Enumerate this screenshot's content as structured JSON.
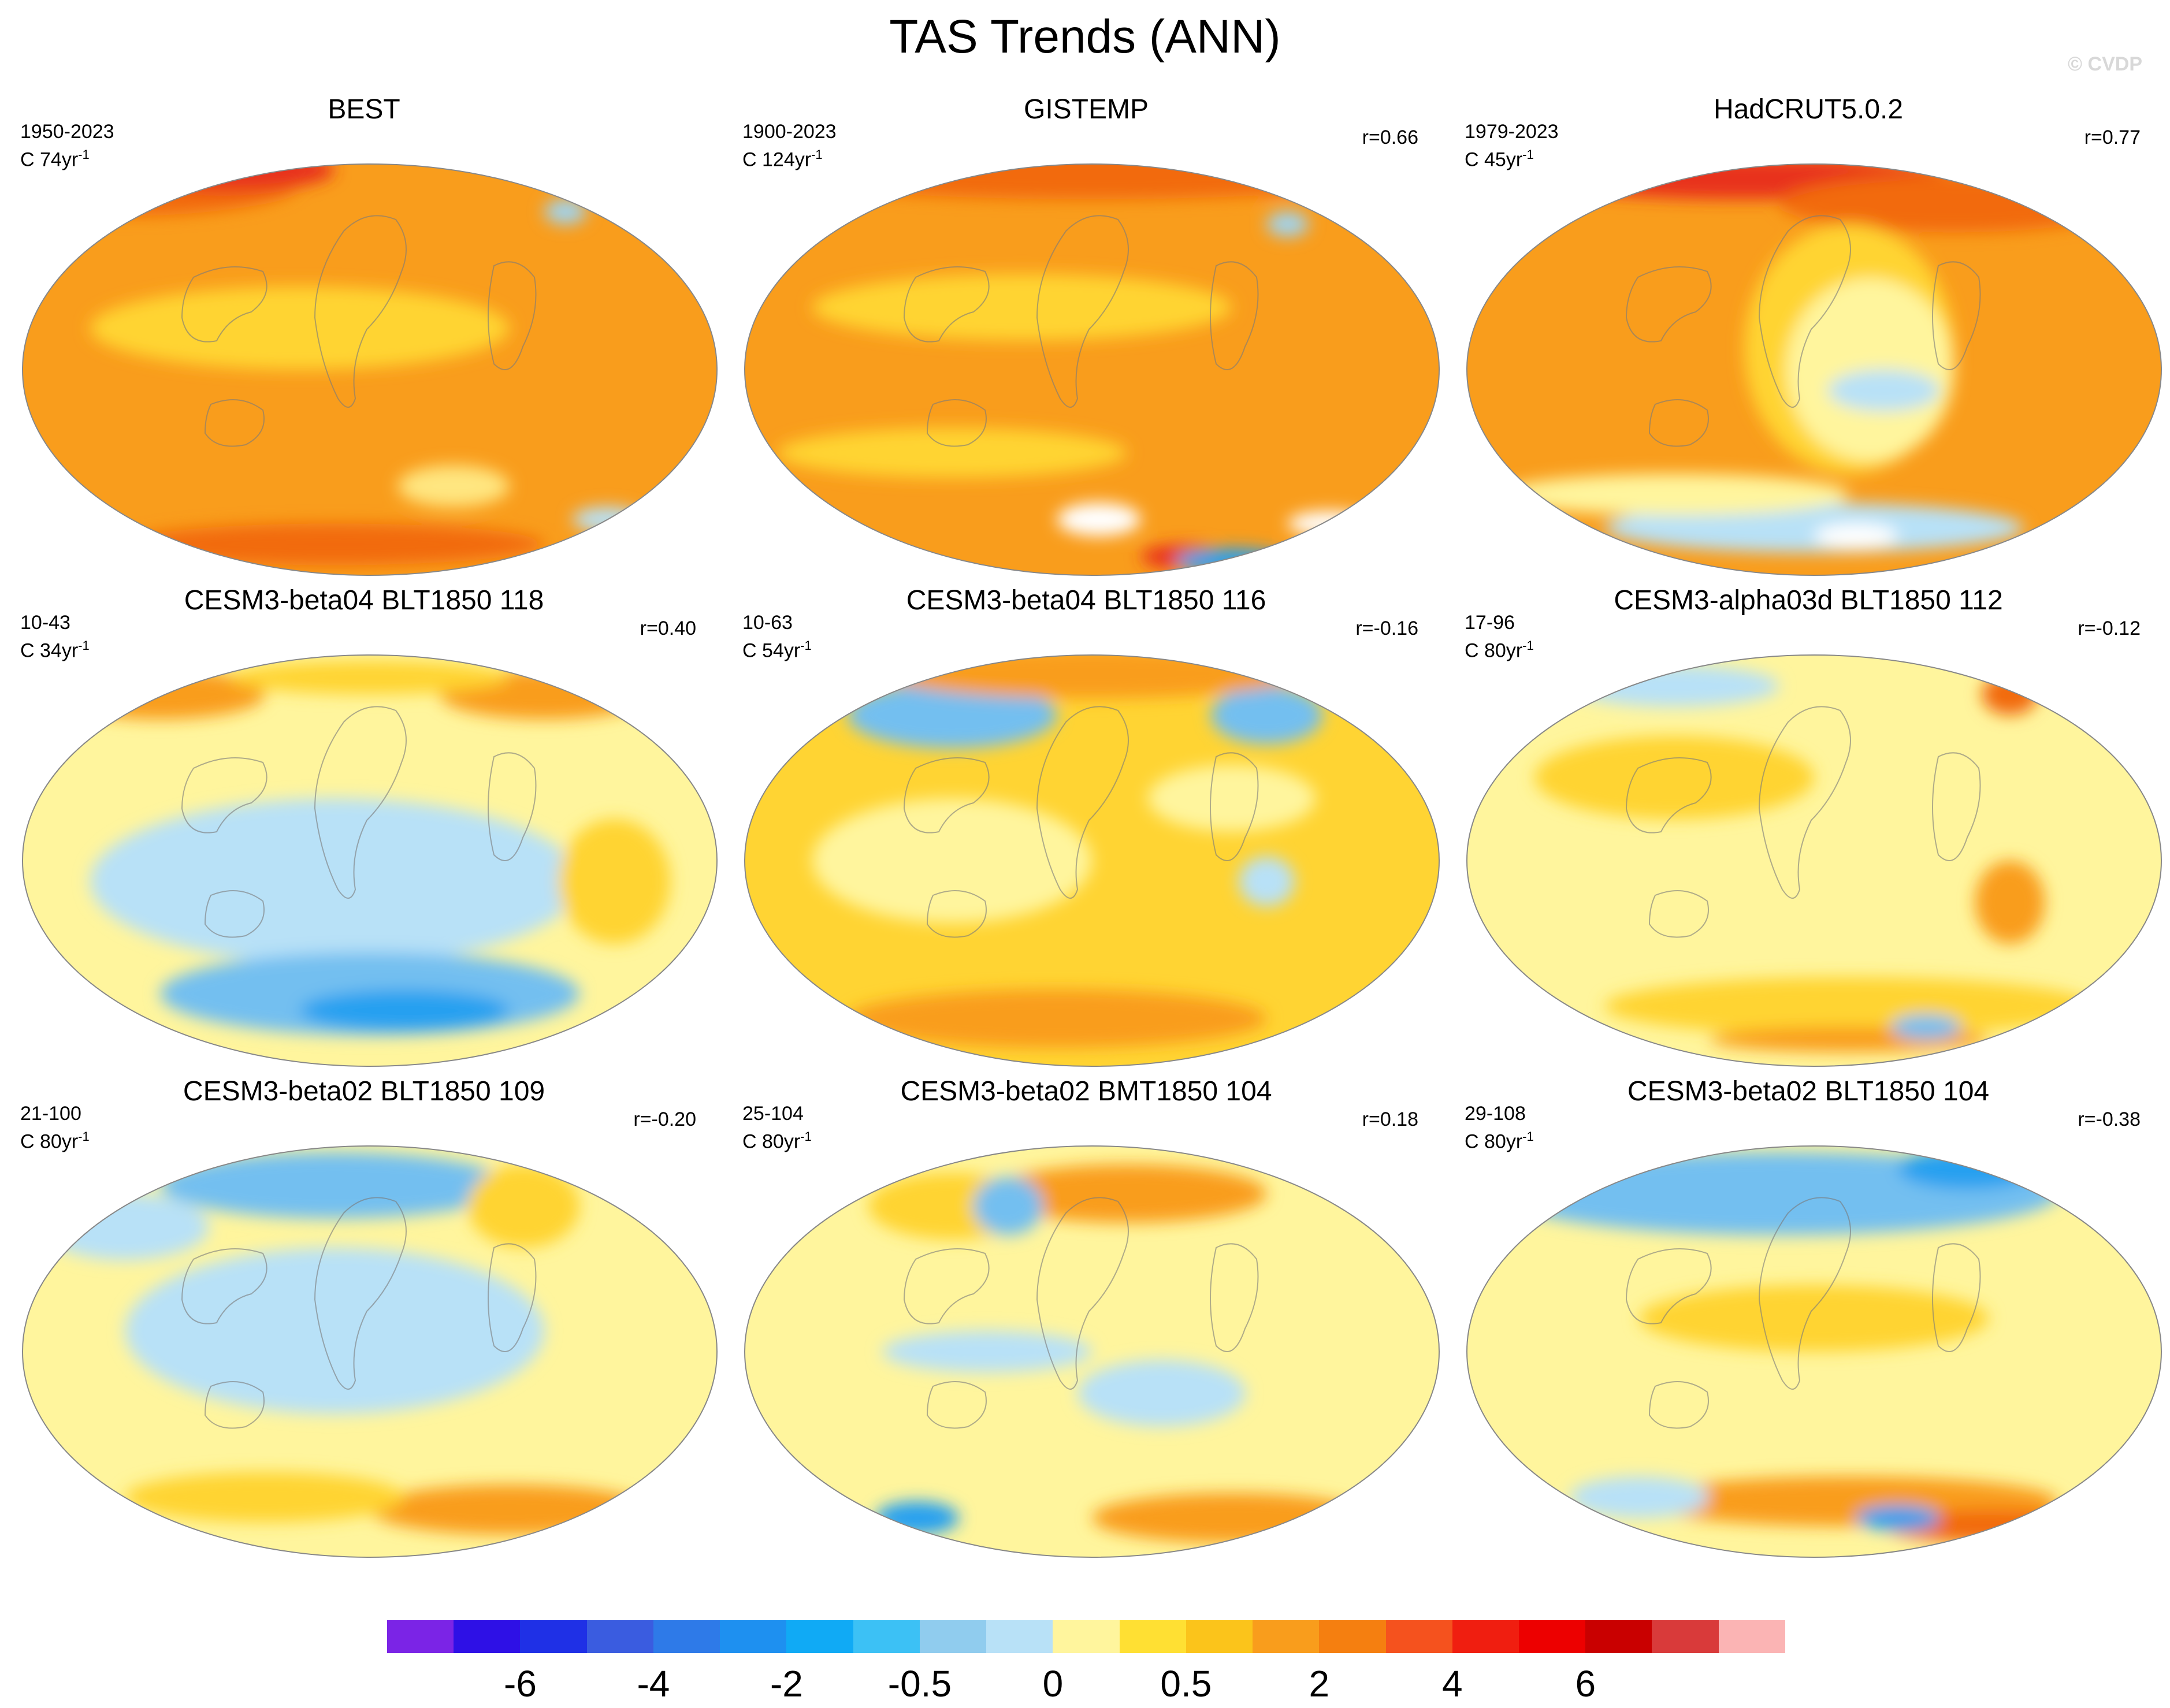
{
  "title": "TAS Trends (ANN)",
  "watermark": "© CVDP",
  "units_sup": "-1",
  "panels": [
    {
      "title": "BEST",
      "years": "1950-2023",
      "rate": "C 74yr",
      "corr": "",
      "base": "#f99d1c",
      "blobs": [
        [
          "#f26a10",
          0.15,
          0.05,
          0.25,
          0.08
        ],
        [
          "#e8321e",
          0.3,
          0.02,
          0.15,
          0.05
        ],
        [
          "#f26a10",
          0.45,
          0.92,
          0.3,
          0.05
        ],
        [
          "#ffd433",
          0.4,
          0.4,
          0.3,
          0.1
        ],
        [
          "#ffe680",
          0.62,
          0.78,
          0.08,
          0.05
        ],
        [
          "#9fd4f2",
          0.78,
          0.12,
          0.03,
          0.03
        ],
        [
          "#b8e1f7",
          0.84,
          0.86,
          0.05,
          0.03
        ]
      ]
    },
    {
      "title": "GISTEMP",
      "years": "1900-2023",
      "rate": "C 124yr",
      "corr": "r=0.66",
      "base": "#f99d1c",
      "blobs": [
        [
          "#f26a10",
          0.5,
          0.03,
          0.45,
          0.06
        ],
        [
          "#ffd433",
          0.4,
          0.35,
          0.3,
          0.08
        ],
        [
          "#ffd433",
          0.3,
          0.7,
          0.25,
          0.06
        ],
        [
          "#ffffff",
          0.51,
          0.86,
          0.06,
          0.04
        ],
        [
          "#ffffff",
          0.84,
          0.87,
          0.06,
          0.03
        ],
        [
          "#e8321e",
          0.63,
          0.95,
          0.06,
          0.03
        ],
        [
          "#28a0f0",
          0.7,
          0.96,
          0.08,
          0.03
        ],
        [
          "#9fd4f2",
          0.78,
          0.15,
          0.03,
          0.03
        ]
      ]
    },
    {
      "title": "HadCRUT5.0.2",
      "years": "1979-2023",
      "rate": "C 45yr",
      "corr": "r=0.77",
      "base": "#f99d1c",
      "blobs": [
        [
          "#e8321e",
          0.4,
          0.04,
          0.3,
          0.05
        ],
        [
          "#f26a10",
          0.7,
          0.1,
          0.25,
          0.07
        ],
        [
          "#ffd433",
          0.55,
          0.45,
          0.15,
          0.3
        ],
        [
          "#fff59d",
          0.58,
          0.5,
          0.12,
          0.22
        ],
        [
          "#b8e1f7",
          0.6,
          0.55,
          0.08,
          0.05
        ],
        [
          "#b8e1f7",
          0.5,
          0.88,
          0.3,
          0.06
        ],
        [
          "#ffffff",
          0.56,
          0.9,
          0.06,
          0.03
        ],
        [
          "#fff59d",
          0.3,
          0.8,
          0.25,
          0.05
        ]
      ]
    },
    {
      "title": "CESM3-beta04 BLT1850 118",
      "years": "10-43",
      "rate": "C 34yr",
      "corr": "r=0.40",
      "base": "#fff59d",
      "blobs": [
        [
          "#b8e1f7",
          0.45,
          0.55,
          0.35,
          0.2
        ],
        [
          "#73bff0",
          0.5,
          0.82,
          0.3,
          0.1
        ],
        [
          "#28a0f0",
          0.55,
          0.86,
          0.15,
          0.05
        ],
        [
          "#f99d1c",
          0.2,
          0.1,
          0.15,
          0.06
        ],
        [
          "#f99d1c",
          0.75,
          0.1,
          0.15,
          0.06
        ],
        [
          "#ffd433",
          0.5,
          0.06,
          0.2,
          0.04
        ],
        [
          "#ffd433",
          0.85,
          0.55,
          0.08,
          0.15
        ]
      ]
    },
    {
      "title": "CESM3-beta04 BLT1850 116",
      "years": "10-63",
      "rate": "C 54yr",
      "corr": "r=-0.16",
      "base": "#ffd433",
      "blobs": [
        [
          "#73bff0",
          0.3,
          0.15,
          0.15,
          0.08
        ],
        [
          "#73bff0",
          0.75,
          0.15,
          0.08,
          0.07
        ],
        [
          "#f99d1c",
          0.5,
          0.05,
          0.3,
          0.06
        ],
        [
          "#f99d1c",
          0.45,
          0.88,
          0.3,
          0.07
        ],
        [
          "#fff59d",
          0.3,
          0.5,
          0.2,
          0.15
        ],
        [
          "#b8e1f7",
          0.75,
          0.55,
          0.04,
          0.06
        ],
        [
          "#fff59d",
          0.7,
          0.35,
          0.12,
          0.08
        ]
      ]
    },
    {
      "title": "CESM3-alpha03d BLT1850 112",
      "years": "17-96",
      "rate": "C 80yr",
      "corr": "r=-0.12",
      "base": "#fff59d",
      "blobs": [
        [
          "#ffd433",
          0.3,
          0.3,
          0.2,
          0.1
        ],
        [
          "#ffd433",
          0.55,
          0.85,
          0.35,
          0.07
        ],
        [
          "#f99d1c",
          0.55,
          0.93,
          0.2,
          0.03
        ],
        [
          "#f26a10",
          0.78,
          0.1,
          0.04,
          0.05
        ],
        [
          "#b8e1f7",
          0.3,
          0.08,
          0.15,
          0.05
        ],
        [
          "#73bff0",
          0.66,
          0.9,
          0.05,
          0.03
        ],
        [
          "#f99d1c",
          0.78,
          0.6,
          0.05,
          0.1
        ]
      ]
    },
    {
      "title": "CESM3-beta02 BLT1850 109",
      "years": "21-100",
      "rate": "C 80yr",
      "corr": "r=-0.20",
      "base": "#fff59d",
      "blobs": [
        [
          "#b8e1f7",
          0.45,
          0.45,
          0.3,
          0.2
        ],
        [
          "#73bff0",
          0.45,
          0.1,
          0.25,
          0.08
        ],
        [
          "#b8e1f7",
          0.15,
          0.2,
          0.12,
          0.08
        ],
        [
          "#f99d1c",
          0.7,
          0.88,
          0.2,
          0.06
        ],
        [
          "#ffd433",
          0.72,
          0.15,
          0.08,
          0.1
        ],
        [
          "#ffd433",
          0.35,
          0.85,
          0.2,
          0.06
        ]
      ]
    },
    {
      "title": "CESM3-beta02 BMT1850 104",
      "years": "25-104",
      "rate": "C 80yr",
      "corr": "r=0.18",
      "base": "#fff59d",
      "blobs": [
        [
          "#f99d1c",
          0.55,
          0.12,
          0.2,
          0.07
        ],
        [
          "#ffd433",
          0.3,
          0.15,
          0.12,
          0.08
        ],
        [
          "#73bff0",
          0.38,
          0.15,
          0.05,
          0.07
        ],
        [
          "#b8e1f7",
          0.6,
          0.6,
          0.12,
          0.08
        ],
        [
          "#f99d1c",
          0.7,
          0.9,
          0.2,
          0.06
        ],
        [
          "#28a0f0",
          0.25,
          0.9,
          0.06,
          0.04
        ],
        [
          "#b8e1f7",
          0.35,
          0.5,
          0.15,
          0.05
        ]
      ]
    },
    {
      "title": "CESM3-beta02 BLT1850 104",
      "years": "29-108",
      "rate": "C 80yr",
      "corr": "r=-0.38",
      "base": "#fff59d",
      "blobs": [
        [
          "#73bff0",
          0.45,
          0.12,
          0.4,
          0.1
        ],
        [
          "#28a0f0",
          0.72,
          0.06,
          0.1,
          0.05
        ],
        [
          "#ffd433",
          0.5,
          0.42,
          0.25,
          0.08
        ],
        [
          "#f99d1c",
          0.55,
          0.86,
          0.3,
          0.06
        ],
        [
          "#f26a10",
          0.75,
          0.92,
          0.15,
          0.04
        ],
        [
          "#28a0f0",
          0.62,
          0.9,
          0.06,
          0.03
        ],
        [
          "#b8e1f7",
          0.25,
          0.85,
          0.1,
          0.05
        ]
      ]
    }
  ],
  "colorbar": {
    "colors": [
      "#7b24e6",
      "#2e10e6",
      "#1f30e6",
      "#3a5ce0",
      "#2e7ae8",
      "#1e90f0",
      "#10aaf5",
      "#3cc1f5",
      "#90ccee",
      "#b8e1f7",
      "#fff59d",
      "#ffe033",
      "#fbc41b",
      "#f99d1c",
      "#f57f10",
      "#f5521e",
      "#f01e10",
      "#ed0000",
      "#c90000",
      "#d93a3a",
      "#fbb4b4"
    ],
    "labels": [
      "-6",
      "-4",
      "-2",
      "-0.5",
      "0",
      "0.5",
      "2",
      "4",
      "6"
    ]
  }
}
